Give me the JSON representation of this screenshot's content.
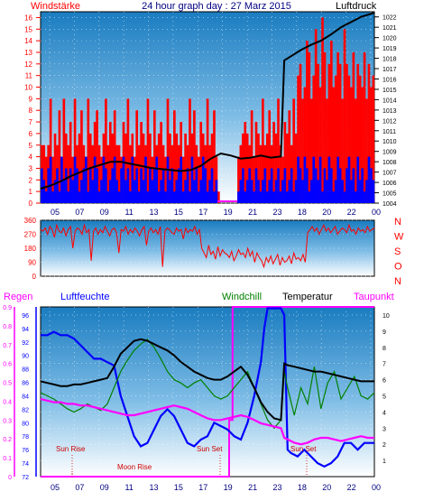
{
  "chart_data": [
    {
      "type": "line",
      "title": "24 hour graph day : 27 Marz 2015",
      "left_label": "Windstärke",
      "right_label": "Luftdruck",
      "x_ticks": [
        "05",
        "07",
        "09",
        "11",
        "13",
        "15",
        "17",
        "19",
        "21",
        "23",
        "18",
        "20",
        "22",
        "00"
      ],
      "y_left_ticks": [
        "0",
        "1",
        "2",
        "3",
        "4",
        "5",
        "6",
        "7",
        "8",
        "9",
        "10",
        "11",
        "12",
        "13",
        "14",
        "15",
        "16"
      ],
      "y_left_range": [
        0,
        16.5
      ],
      "y_right_ticks": [
        "1004",
        "1005",
        "1006",
        "1007",
        "1008",
        "1009",
        "1010",
        "1011",
        "1012",
        "1013",
        "1014",
        "1015",
        "1016",
        "1017",
        "1018",
        "1019",
        "1020",
        "1021",
        "1022"
      ],
      "y_right_range": [
        1004,
        1022.5
      ],
      "x_range": [
        0,
        100
      ],
      "series": [
        {
          "color": "#ff0000",
          "kind": "gust_bars",
          "axis": "left",
          "values": [
            5,
            5,
            4,
            5,
            9,
            4,
            6,
            5,
            8,
            4,
            9,
            6,
            5,
            7,
            4,
            9,
            5,
            6,
            8,
            5,
            4,
            9,
            6,
            5,
            7,
            8,
            5,
            4,
            6,
            9,
            5,
            7,
            6,
            8,
            5,
            5,
            4,
            7,
            6,
            9,
            5,
            6,
            4,
            8,
            5,
            7,
            6,
            5,
            9,
            6,
            4,
            8,
            5,
            6,
            7,
            5,
            4,
            9,
            6,
            5,
            8,
            6,
            5,
            7,
            4,
            6,
            5,
            9,
            6,
            8,
            5,
            4,
            7,
            6,
            5,
            9,
            5,
            6,
            8,
            4,
            1,
            0,
            0,
            0,
            0,
            0,
            0,
            0,
            0,
            4,
            5,
            6,
            7,
            6,
            5,
            8,
            4,
            7,
            6,
            5,
            9,
            5,
            6,
            8,
            5,
            7,
            6,
            9,
            5,
            4,
            7,
            6,
            8,
            5,
            9,
            6,
            11,
            12,
            9,
            10,
            14,
            13,
            9,
            11,
            15,
            12,
            10,
            16,
            13,
            9,
            12,
            14,
            10,
            11,
            13,
            12,
            9,
            15,
            12,
            11,
            10,
            13,
            9,
            12,
            11,
            10,
            13,
            9,
            12,
            10,
            11
          ]
        },
        {
          "color": "#0000ff",
          "kind": "mean_bars",
          "axis": "left",
          "values": [
            3,
            2,
            1,
            3,
            4,
            1,
            2,
            3,
            1,
            4,
            2,
            3,
            1,
            3,
            2,
            4,
            3,
            1,
            2,
            3,
            4,
            1,
            3,
            2,
            4,
            3,
            1,
            2,
            4,
            3,
            1,
            2,
            3,
            4,
            2,
            1,
            3,
            4,
            2,
            3,
            1,
            4,
            2,
            3,
            1,
            3,
            2,
            4,
            1,
            3,
            2,
            3,
            4,
            1,
            2,
            3,
            1,
            4,
            2,
            3,
            1,
            2,
            3,
            4,
            1,
            2,
            3,
            1,
            4,
            2,
            3,
            1,
            2,
            4,
            3,
            1,
            2,
            3,
            1,
            2,
            0,
            0,
            0,
            0,
            0,
            0,
            0,
            0,
            0,
            1,
            2,
            3,
            1,
            2,
            3,
            2,
            1,
            3,
            2,
            1,
            2,
            3,
            1,
            2,
            3,
            1,
            2,
            3,
            1,
            2,
            3,
            1,
            2,
            3,
            1,
            2,
            4,
            3,
            2,
            4,
            3,
            1,
            2,
            4,
            3,
            2,
            4,
            1,
            3,
            2,
            4,
            3,
            1,
            2,
            4,
            3,
            2,
            1,
            3,
            4,
            2,
            3,
            1,
            4,
            2,
            3,
            1,
            2,
            4,
            3,
            2
          ]
        },
        {
          "color": "#000000",
          "kind": "line",
          "axis": "right",
          "x": [
            0,
            3,
            6,
            9,
            12,
            15,
            18,
            21,
            24,
            27,
            30,
            33,
            36,
            39,
            42,
            45,
            48,
            51,
            54,
            57,
            60,
            63,
            66,
            69,
            72,
            73,
            75,
            78,
            81,
            84,
            87,
            90,
            93,
            96,
            100
          ],
          "y": [
            1005.4,
            1005.7,
            1006.1,
            1006.6,
            1007.0,
            1007.4,
            1007.7,
            1008.0,
            1008.0,
            1007.8,
            1007.6,
            1007.4,
            1007.3,
            1007.2,
            1007.1,
            1007.2,
            1007.6,
            1008.3,
            1008.8,
            1008.6,
            1008.3,
            1008.4,
            1008.6,
            1008.4,
            1008.5,
            1017.8,
            1018.2,
            1018.8,
            1019.3,
            1019.7,
            1020.3,
            1021.0,
            1021.5,
            1022.0,
            1022.4
          ]
        }
      ]
    },
    {
      "type": "line",
      "title": "",
      "y_ticks": [
        "0",
        "90",
        "180",
        "270",
        "360"
      ],
      "y_range": [
        0,
        360
      ],
      "compass_labels": [
        "N",
        "W",
        "S",
        "O",
        "N"
      ],
      "series": [
        {
          "color": "#ff0000",
          "kind": "direction_line",
          "values": [
            300,
            290,
            310,
            270,
            320,
            300,
            250,
            330,
            290,
            280,
            310,
            260,
            300,
            320,
            180,
            290,
            310,
            300,
            270,
            330,
            280,
            300,
            100,
            290,
            310,
            270,
            300,
            280,
            320,
            290,
            260,
            300,
            310,
            280,
            150,
            300,
            290,
            320,
            270,
            300,
            280,
            310,
            290,
            260,
            300,
            320,
            200,
            290,
            310,
            280,
            300,
            270,
            320,
            60,
            290,
            310,
            300,
            280,
            270,
            310,
            290,
            300,
            240,
            310,
            280,
            300,
            290,
            320,
            270,
            300,
            180,
            150,
            120,
            200,
            140,
            160,
            110,
            190,
            130,
            170,
            150,
            140,
            120,
            160,
            100,
            130,
            170,
            140,
            150,
            120,
            180,
            130,
            160,
            90,
            150,
            120,
            100,
            60,
            120,
            90,
            130,
            80,
            110,
            140,
            70,
            120,
            90,
            100,
            130,
            80,
            150,
            110,
            120,
            100,
            140,
            90,
            280,
            300,
            320,
            290,
            310,
            270,
            300,
            330,
            290,
            310,
            280,
            300,
            320,
            270,
            290,
            310,
            300,
            280,
            330,
            290,
            300,
            270,
            310,
            290,
            300,
            280,
            320,
            290,
            300,
            310
          ]
        }
      ]
    },
    {
      "type": "line",
      "title": "",
      "legend": [
        "Regen",
        "Luftfeuchte",
        "Windchill",
        "Temperatur",
        "Taupunkt"
      ],
      "legend_colors": [
        "#ff00ff",
        "#0000ff",
        "#008000",
        "#000000",
        "#ff00ff"
      ],
      "y_rain_ticks": [
        "0",
        "0.1",
        "0.2",
        "0.3",
        "0.4",
        "0.5",
        "0.6",
        "0.7",
        "0.8",
        "0.9"
      ],
      "y_rain_range": [
        0,
        0.9
      ],
      "y_humidity_ticks": [
        "72",
        "74",
        "76",
        "78",
        "80",
        "82",
        "84",
        "86",
        "88",
        "90",
        "92",
        "94",
        "96"
      ],
      "y_humidity_range": [
        72,
        97.2
      ],
      "y_temp_ticks": [
        "1",
        "2",
        "3",
        "4",
        "5",
        "6",
        "7",
        "8",
        "9",
        "10"
      ],
      "y_temp_range": [
        0,
        10.5
      ],
      "annotations": [
        "Sun Rise",
        "Moon Rise",
        "Sun Set",
        "Sun Set"
      ],
      "series": [
        {
          "name": "Luftfeuchte",
          "color": "#0000ff",
          "x": [
            0,
            2,
            4,
            6,
            8,
            10,
            12,
            14,
            16,
            18,
            20,
            22,
            24,
            26,
            28,
            30,
            32,
            34,
            36,
            38,
            40,
            42,
            44,
            46,
            48,
            50,
            52,
            54,
            56,
            58,
            60,
            62,
            64,
            66,
            67,
            68,
            70,
            72,
            73,
            74,
            75,
            77,
            79,
            81,
            83,
            85,
            87,
            89,
            91,
            93,
            95,
            97,
            100
          ],
          "y": [
            93,
            93,
            93.5,
            93,
            93,
            92.5,
            91.5,
            90.5,
            89.5,
            89.5,
            89,
            88.5,
            84,
            81,
            78,
            76.5,
            77,
            79,
            81,
            82,
            81,
            79,
            77,
            76.5,
            77.5,
            78,
            80,
            79.5,
            79,
            78,
            77.5,
            80,
            84,
            89,
            94,
            97,
            97,
            97,
            96,
            76,
            75.5,
            75,
            76,
            75,
            74,
            73.5,
            74,
            75,
            77,
            77,
            76,
            77,
            77
          ]
        },
        {
          "name": "Windchill",
          "color": "#008000",
          "x": [
            0,
            2,
            4,
            6,
            8,
            10,
            12,
            14,
            16,
            18,
            20,
            22,
            24,
            26,
            28,
            30,
            32,
            34,
            36,
            38,
            40,
            42,
            44,
            46,
            48,
            50,
            52,
            54,
            56,
            58,
            60,
            62,
            64,
            66,
            68,
            70,
            72,
            73,
            74,
            76,
            78,
            80,
            82,
            84,
            86,
            88,
            90,
            92,
            94,
            96,
            98,
            100
          ],
          "y": [
            5.2,
            5.0,
            4.8,
            4.5,
            4.2,
            4.0,
            4.2,
            4.5,
            4.3,
            4.1,
            4.5,
            5.5,
            6.5,
            7.2,
            7.8,
            8.2,
            8.5,
            8.0,
            7.3,
            6.5,
            6.0,
            5.8,
            5.5,
            5.8,
            6.0,
            5.5,
            5.0,
            4.8,
            5.0,
            5.5,
            6.0,
            6.5,
            5.5,
            4.5,
            3.5,
            3.0,
            3.5,
            6.5,
            5.5,
            3.8,
            5.5,
            4.5,
            6.8,
            4.2,
            5.8,
            6.5,
            4.8,
            5.5,
            6.2,
            5.0,
            4.8,
            5.2
          ]
        },
        {
          "name": "Temperatur",
          "color": "#000000",
          "x": [
            0,
            2,
            4,
            6,
            8,
            10,
            12,
            14,
            16,
            18,
            20,
            22,
            24,
            26,
            28,
            30,
            32,
            34,
            36,
            38,
            40,
            42,
            44,
            46,
            48,
            50,
            52,
            54,
            56,
            58,
            60,
            62,
            64,
            66,
            68,
            70,
            72,
            73,
            74,
            76,
            78,
            80,
            82,
            84,
            86,
            88,
            90,
            92,
            94,
            96,
            98,
            100
          ],
          "y": [
            5.9,
            5.8,
            5.7,
            5.6,
            5.6,
            5.7,
            5.7,
            5.8,
            5.9,
            6.0,
            6.1,
            6.8,
            7.6,
            8.0,
            8.4,
            8.5,
            8.4,
            8.2,
            8.0,
            7.8,
            7.5,
            7.1,
            6.8,
            6.5,
            6.3,
            6.1,
            6.0,
            6.0,
            6.2,
            6.5,
            6.8,
            6.3,
            5.5,
            4.6,
            4.0,
            3.6,
            3.5,
            7.0,
            6.9,
            6.8,
            6.7,
            6.6,
            6.5,
            6.5,
            6.4,
            6.3,
            6.2,
            6.1,
            6.0,
            5.9,
            5.9,
            5.9
          ]
        },
        {
          "name": "Taupunkt",
          "color": "#ff00ff",
          "x": [
            0,
            2,
            4,
            6,
            8,
            10,
            12,
            14,
            16,
            18,
            20,
            22,
            24,
            26,
            28,
            30,
            32,
            34,
            36,
            38,
            40,
            42,
            44,
            46,
            48,
            50,
            52,
            54,
            56,
            58,
            60,
            62,
            64,
            66,
            68,
            70,
            72,
            73,
            74,
            76,
            78,
            80,
            82,
            84,
            86,
            88,
            90,
            92,
            94,
            96,
            98,
            100
          ],
          "y": [
            4.8,
            4.7,
            4.6,
            4.6,
            4.5,
            4.5,
            4.4,
            4.4,
            4.3,
            4.2,
            4.1,
            4.0,
            3.9,
            3.8,
            3.8,
            3.9,
            4.0,
            4.1,
            4.2,
            4.3,
            4.4,
            4.3,
            4.2,
            4.0,
            3.8,
            3.6,
            3.5,
            3.5,
            3.6,
            3.7,
            3.8,
            3.7,
            3.5,
            3.3,
            3.2,
            3.1,
            3.0,
            2.4,
            2.3,
            2.1,
            2.0,
            2.1,
            2.3,
            2.4,
            2.4,
            2.3,
            2.2,
            2.3,
            2.4,
            2.5,
            2.4,
            2.4
          ]
        },
        {
          "name": "Regen",
          "color": "#ff00ff",
          "kind": "step",
          "x": [
            0,
            56.5,
            56.5,
            57.5,
            57.5,
            58.5,
            58.5,
            100
          ],
          "y": [
            0,
            0,
            0.3,
            0.3,
            0.9,
            0.9,
            0.9,
            0.9
          ]
        }
      ]
    }
  ]
}
